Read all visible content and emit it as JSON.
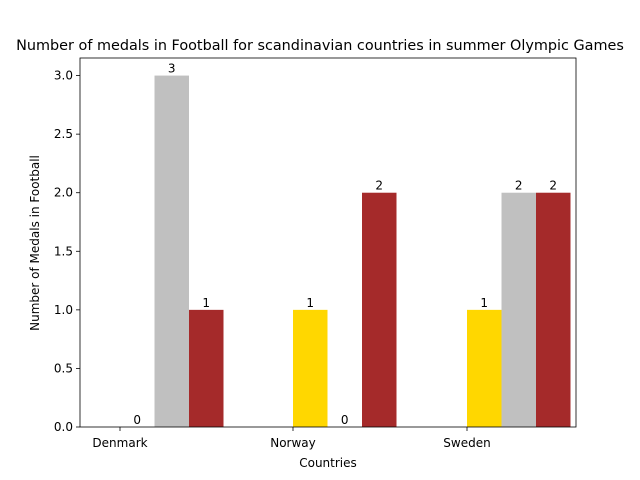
{
  "chart_data": {
    "type": "bar",
    "title": "Number of medals in Football for scandinavian countries in summer Olympic Games",
    "xlabel": "Countries",
    "ylabel": "Number of Medals in Football",
    "categories": [
      "Denmark",
      "Norway",
      "Sweden"
    ],
    "series": [
      {
        "color": "#ffd700",
        "values": [
          0,
          1,
          1
        ]
      },
      {
        "color": "#c0c0c0",
        "values": [
          3,
          0,
          2
        ]
      },
      {
        "color": "#a52a2a",
        "values": [
          1,
          2,
          2
        ]
      }
    ],
    "ylim": [
      0,
      3.15
    ],
    "yticks": [
      0.0,
      0.5,
      1.0,
      1.5,
      2.0,
      2.5,
      3.0
    ],
    "ytick_labels": [
      "0.0",
      "0.5",
      "1.0",
      "1.5",
      "2.0",
      "2.5",
      "3.0"
    ],
    "grid": false,
    "legend": "none"
  }
}
